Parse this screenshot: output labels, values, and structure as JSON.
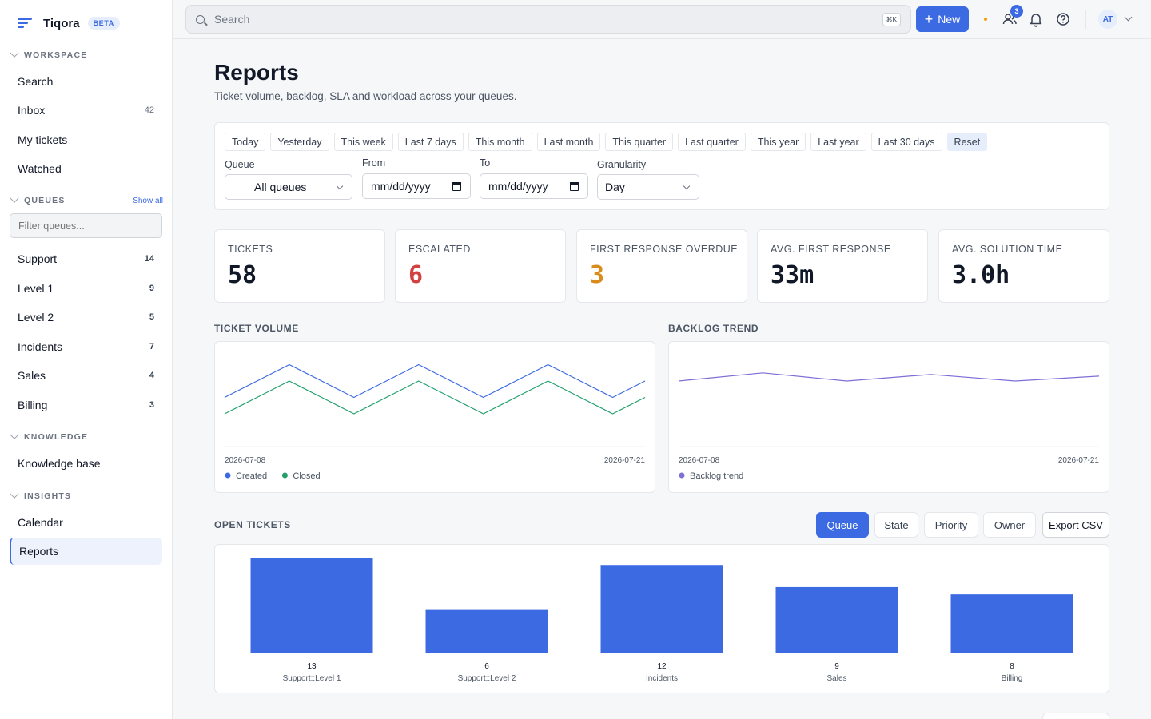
{
  "app": {
    "name": "Tiqora",
    "badge": "BETA"
  },
  "sidebar": {
    "workspace": {
      "title": "WORKSPACE",
      "items": [
        {
          "label": "Search",
          "count": ""
        },
        {
          "label": "Inbox",
          "count": "42"
        },
        {
          "label": "My tickets",
          "count": ""
        },
        {
          "label": "Watched",
          "count": ""
        }
      ]
    },
    "queues": {
      "title": "QUEUES",
      "show_all": "Show all",
      "filter_placeholder": "Filter queues...",
      "items": [
        {
          "label": "Support",
          "count": "14"
        },
        {
          "label": "Level 1",
          "count": "9"
        },
        {
          "label": "Level 2",
          "count": "5"
        },
        {
          "label": "Incidents",
          "count": "7"
        },
        {
          "label": "Sales",
          "count": "4"
        },
        {
          "label": "Billing",
          "count": "3"
        }
      ]
    },
    "knowledge": {
      "title": "KNOWLEDGE",
      "items": [
        {
          "label": "Knowledge base"
        }
      ]
    },
    "insights": {
      "title": "INSIGHTS",
      "items": [
        {
          "label": "Calendar"
        },
        {
          "label": "Reports"
        }
      ]
    }
  },
  "topbar": {
    "search_placeholder": "Search",
    "shortcut": "⌘K",
    "new_label": "New",
    "notification_count": "3",
    "avatar_initials": "AT"
  },
  "page": {
    "title": "Reports",
    "subtitle": "Ticket volume, backlog, SLA and workload across your queues."
  },
  "filters": {
    "presets": [
      "Today",
      "Yesterday",
      "This week",
      "Last 7 days",
      "This month",
      "Last month",
      "This quarter",
      "Last quarter",
      "This year",
      "Last year",
      "Last 30 days",
      "Reset"
    ],
    "queue_label": "Queue",
    "queue_value": "All queues",
    "from_label": "From",
    "from_value": "mm/dd/yyyy",
    "to_label": "To",
    "to_value": "mm/dd/yyyy",
    "granularity_label": "Granularity",
    "granularity_value": "Day"
  },
  "kpis": [
    {
      "label": "TICKETS",
      "value": "58",
      "color": "#111827"
    },
    {
      "label": "ESCALATED",
      "value": "6",
      "color": "#d14343"
    },
    {
      "label": "FIRST RESPONSE OVERDUE",
      "value": "3",
      "color": "#d98b1c"
    },
    {
      "label": "AVG. FIRST RESPONSE",
      "value": "33m",
      "color": "#111827"
    },
    {
      "label": "AVG. SOLUTION TIME",
      "value": "3.0h",
      "color": "#111827"
    }
  ],
  "sections": {
    "ticket_volume": "TICKET VOLUME",
    "backlog_trend": "BACKLOG TREND",
    "open_tickets": "OPEN TICKETS"
  },
  "open_tabs": [
    "Queue",
    "State",
    "Priority",
    "Owner"
  ],
  "export_label": "Export CSV",
  "chart_data": [
    {
      "type": "line",
      "x": [
        "2026-07-08",
        "2026-07-09",
        "2026-07-10",
        "2026-07-11",
        "2026-07-12",
        "2026-07-13",
        "2026-07-14",
        "2026-07-15",
        "2026-07-16",
        "2026-07-17",
        "2026-07-18",
        "2026-07-19",
        "2026-07-20",
        "2026-07-21"
      ],
      "x_tick_labels": [
        "2026-07-08",
        "2026-07-21"
      ],
      "ylim": [
        0,
        6
      ],
      "series": [
        {
          "name": "Created",
          "color": "#3b6ae3",
          "values": [
            3,
            4,
            5,
            4,
            3,
            4,
            5,
            4,
            3,
            4,
            5,
            4,
            3,
            4
          ]
        },
        {
          "name": "Closed",
          "color": "#22a06b",
          "values": [
            2,
            3,
            4,
            3,
            2,
            3,
            4,
            3,
            2,
            3,
            4,
            3,
            2,
            3
          ]
        }
      ],
      "legend": "bottom-left",
      "grid": false
    },
    {
      "type": "line",
      "x": [
        "2026-07-08",
        "2026-07-11",
        "2026-07-14",
        "2026-07-17",
        "2026-07-20",
        "2026-07-21"
      ],
      "x_tick_labels": [
        "2026-07-08",
        "2026-07-21"
      ],
      "ylim": [
        0,
        6
      ],
      "series": [
        {
          "name": "Backlog trend",
          "color": "#7c6fd6",
          "values": [
            4,
            4.5,
            4,
            4.4,
            4,
            4.3
          ]
        }
      ],
      "legend": "bottom-left",
      "grid": false
    },
    {
      "type": "bar",
      "categories": [
        "Support::Level 1",
        "Support::Level 2",
        "Incidents",
        "Sales",
        "Billing"
      ],
      "values": [
        13,
        6,
        12,
        9,
        8
      ],
      "color": "#3b6ae3",
      "ylim": [
        0,
        13
      ]
    }
  ]
}
